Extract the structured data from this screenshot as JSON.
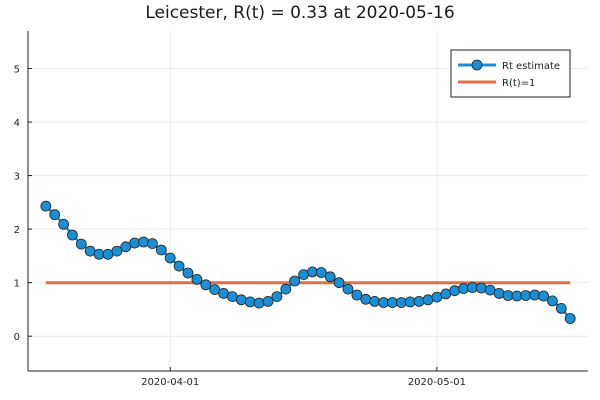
{
  "chart_data": {
    "type": "line",
    "title": "Leicester, R(t) = 0.33 at 2020-05-16",
    "xlabel": "",
    "ylabel": "",
    "x_ticks": [
      {
        "date": "2020-04-01",
        "label": "2020-04-01"
      },
      {
        "date": "2020-05-01",
        "label": "2020-05-01"
      }
    ],
    "xlim": [
      "2020-03-16",
      "2020-05-18"
    ],
    "ylim": [
      -0.65,
      5.7
    ],
    "y_ticks": [
      0,
      1,
      2,
      3,
      4,
      5
    ],
    "y_tick_labels": [
      "0",
      "1",
      "2",
      "3",
      "4",
      "5"
    ],
    "grid": true,
    "legend_placement": "top-right",
    "series": [
      {
        "name": "Rt estimate",
        "color": "#1a8fd6",
        "marker": "circle",
        "x_start": "2020-03-18",
        "x_step_days": 1,
        "values": [
          2.43,
          2.27,
          2.09,
          1.89,
          1.72,
          1.59,
          1.53,
          1.53,
          1.59,
          1.67,
          1.74,
          1.76,
          1.73,
          1.61,
          1.46,
          1.31,
          1.18,
          1.06,
          0.96,
          0.87,
          0.8,
          0.74,
          0.68,
          0.64,
          0.62,
          0.65,
          0.74,
          0.88,
          1.03,
          1.15,
          1.2,
          1.19,
          1.11,
          1.0,
          0.88,
          0.77,
          0.69,
          0.65,
          0.63,
          0.63,
          0.63,
          0.64,
          0.65,
          0.68,
          0.73,
          0.79,
          0.85,
          0.89,
          0.91,
          0.9,
          0.86,
          0.8,
          0.76,
          0.75,
          0.76,
          0.77,
          0.75,
          0.66,
          0.52,
          0.33
        ]
      },
      {
        "name": "R(t)=1",
        "color": "#e26f46",
        "marker": "none",
        "x": [
          "2020-03-18",
          "2020-05-16"
        ],
        "values": [
          1,
          1
        ]
      }
    ]
  }
}
